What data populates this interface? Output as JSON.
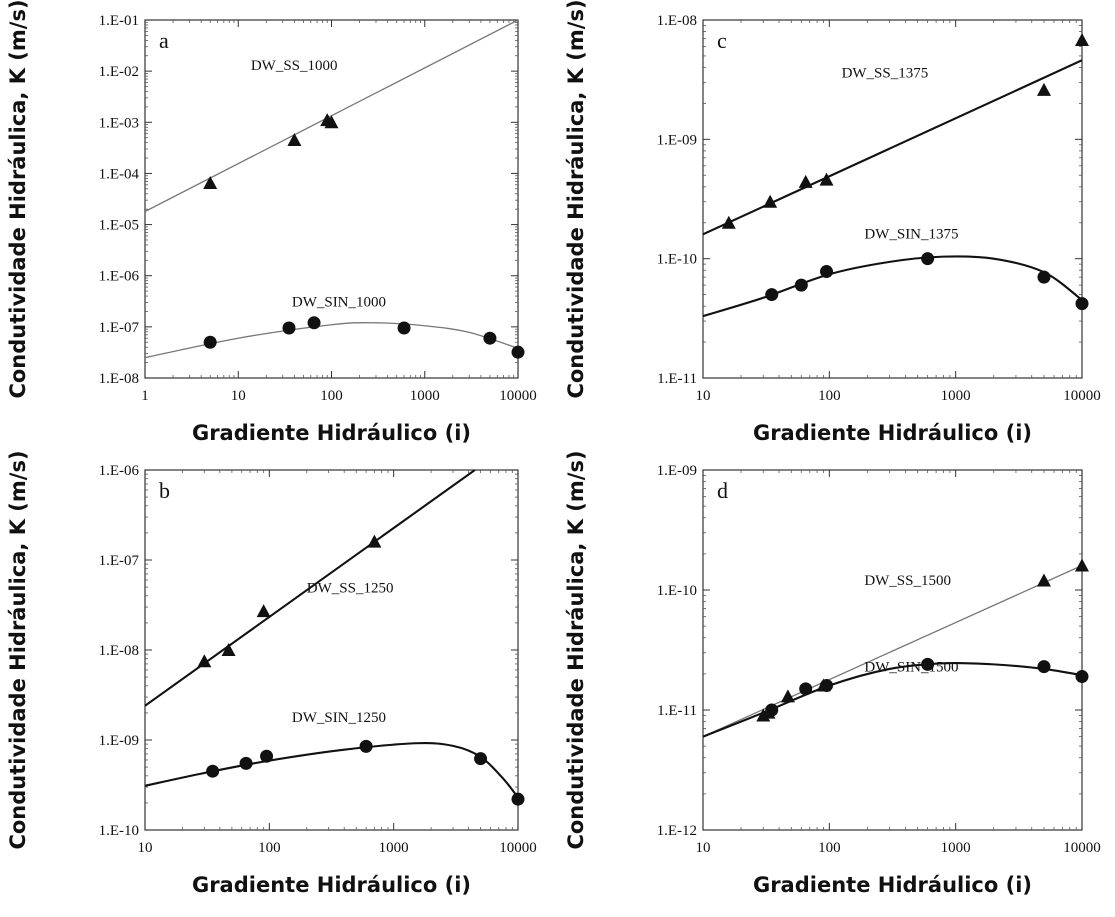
{
  "figure": {
    "xlabel": "Gradiente Hidráulico (i)",
    "ylabel": "Condutividade Hidráulica, K (m/s)"
  },
  "chart_data": [
    {
      "type": "scatter",
      "panel": "a",
      "x_scale": "log",
      "y_scale": "log",
      "xlim": [
        1,
        10000
      ],
      "ylim": [
        1e-08,
        0.1
      ],
      "x_ticks": [
        "1",
        "10",
        "100",
        "1000",
        "10000"
      ],
      "y_ticks": [
        "1.E-08",
        "1.E-07",
        "1.E-06",
        "1.E-05",
        "1.E-04",
        "1.E-03",
        "1.E-02",
        "1.E-01"
      ],
      "xlabel": "Gradiente Hidráulico (i)",
      "ylabel": "Condutividade Hidráulica, K (m/s)",
      "series": [
        {
          "name": "DW_SS_1000",
          "marker": "triangle",
          "line": "thin",
          "points": [
            [
              5,
              6.5e-05
            ],
            [
              40,
              0.00045
            ],
            [
              90,
              0.0011
            ],
            [
              100,
              0.001
            ]
          ],
          "fit": [
            [
              1,
              1.8e-05
            ],
            [
              10000,
              0.1
            ]
          ]
        },
        {
          "name": "DW_SIN_1000",
          "marker": "circle",
          "line": "thin",
          "points": [
            [
              5,
              5e-08
            ],
            [
              35,
              9.5e-08
            ],
            [
              65,
              1.2e-07
            ],
            [
              600,
              9.5e-08
            ],
            [
              5000,
              6e-08
            ],
            [
              10000,
              3.2e-08
            ]
          ],
          "fit": [
            [
              1,
              2.5e-08
            ],
            [
              10,
              6e-08
            ],
            [
              100,
              1.1e-07
            ],
            [
              300,
              1.2e-07
            ],
            [
              1000,
              1.05e-07
            ],
            [
              3000,
              7.8e-08
            ],
            [
              10000,
              3.8e-08
            ]
          ]
        }
      ]
    },
    {
      "type": "scatter",
      "panel": "b",
      "x_scale": "log",
      "y_scale": "log",
      "xlim": [
        10,
        10000
      ],
      "ylim": [
        1e-10,
        1e-06
      ],
      "x_ticks": [
        "10",
        "100",
        "1000",
        "10000"
      ],
      "y_ticks": [
        "1.E-10",
        "1.E-09",
        "1.E-08",
        "1.E-07",
        "1.E-06"
      ],
      "xlabel": "Gradiente Hidráulico (i)",
      "ylabel": "Condutividade Hidráulica, K (m/s)",
      "series": [
        {
          "name": "DW_SS_1250",
          "marker": "triangle",
          "line": "thick",
          "points": [
            [
              30,
              7.5e-09
            ],
            [
              47,
              1e-08
            ],
            [
              90,
              2.7e-08
            ],
            [
              700,
              1.6e-07
            ]
          ],
          "fit": [
            [
              10,
              2.4e-09
            ],
            [
              4500,
              1e-06
            ]
          ]
        },
        {
          "name": "DW_SIN_1250",
          "marker": "circle",
          "line": "thick",
          "points": [
            [
              35,
              4.5e-10
            ],
            [
              65,
              5.5e-10
            ],
            [
              95,
              6.6e-10
            ],
            [
              600,
              8.5e-10
            ],
            [
              5000,
              6.2e-10
            ],
            [
              10000,
              2.2e-10
            ]
          ],
          "fit": [
            [
              10,
              3.1e-10
            ],
            [
              30,
              4.3e-10
            ],
            [
              100,
              5.9e-10
            ],
            [
              400,
              7.8e-10
            ],
            [
              1500,
              9.2e-10
            ],
            [
              3000,
              8.6e-10
            ],
            [
              5000,
              6.5e-10
            ],
            [
              7500,
              3.8e-10
            ],
            [
              10000,
              2.3e-10
            ]
          ]
        }
      ]
    },
    {
      "type": "scatter",
      "panel": "c",
      "x_scale": "log",
      "y_scale": "log",
      "xlim": [
        10,
        10000
      ],
      "ylim": [
        1e-11,
        1e-08
      ],
      "x_ticks": [
        "10",
        "100",
        "1000",
        "10000"
      ],
      "y_ticks": [
        "1.E-11",
        "1.E-10",
        "1.E-09",
        "1.E-08"
      ],
      "xlabel": "Gradiente Hidráulico (i)",
      "ylabel": "Condutividade Hidráulica, K (m/s)",
      "series": [
        {
          "name": "DW_SS_1375",
          "marker": "triangle",
          "line": "thick",
          "points": [
            [
              16,
              2e-10
            ],
            [
              34,
              3e-10
            ],
            [
              65,
              4.4e-10
            ],
            [
              95,
              4.6e-10
            ],
            [
              5000,
              2.6e-09
            ],
            [
              10000,
              6.8e-09
            ]
          ],
          "fit": [
            [
              10,
              1.6e-10
            ],
            [
              10000,
              4.6e-09
            ]
          ]
        },
        {
          "name": "DW_SIN_1375",
          "marker": "circle",
          "line": "thick",
          "points": [
            [
              35,
              5e-11
            ],
            [
              60,
              6e-11
            ],
            [
              95,
              7.8e-11
            ],
            [
              600,
              1e-10
            ],
            [
              5000,
              7e-11
            ],
            [
              10000,
              4.2e-11
            ]
          ],
          "fit": [
            [
              10,
              3.3e-11
            ],
            [
              30,
              4.7e-11
            ],
            [
              100,
              7.4e-11
            ],
            [
              300,
              9.4e-11
            ],
            [
              800,
              1.04e-10
            ],
            [
              2000,
              1e-10
            ],
            [
              5000,
              7.7e-11
            ],
            [
              10000,
              4.5e-11
            ]
          ]
        }
      ]
    },
    {
      "type": "scatter",
      "panel": "d",
      "x_scale": "log",
      "y_scale": "log",
      "xlim": [
        10,
        10000
      ],
      "ylim": [
        1e-12,
        1e-09
      ],
      "x_ticks": [
        "10",
        "100",
        "1000",
        "10000"
      ],
      "y_ticks": [
        "1.E-12",
        "1.E-11",
        "1.E-10",
        "1.E-09"
      ],
      "xlabel": "Gradiente Hidráulico (i)",
      "ylabel": "Condutividade Hidráulica, K (m/s)",
      "series": [
        {
          "name": "DW_SS_1500",
          "marker": "triangle",
          "line": "thin",
          "points": [
            [
              30,
              9e-12
            ],
            [
              33,
              9.5e-12
            ],
            [
              47,
              1.3e-11
            ],
            [
              90,
              1.6e-11
            ],
            [
              5000,
              1.2e-10
            ],
            [
              10000,
              1.6e-10
            ]
          ],
          "fit": [
            [
              10,
              6e-12
            ],
            [
              10000,
              1.6e-10
            ]
          ]
        },
        {
          "name": "DW_SIN_1500",
          "marker": "circle",
          "line": "thick",
          "points": [
            [
              35,
              1e-11
            ],
            [
              65,
              1.5e-11
            ],
            [
              95,
              1.6e-11
            ],
            [
              600,
              2.4e-11
            ],
            [
              5000,
              2.3e-11
            ],
            [
              10000,
              1.9e-11
            ]
          ],
          "fit": [
            [
              10,
              6e-12
            ],
            [
              30,
              9.5e-12
            ],
            [
              100,
              1.6e-11
            ],
            [
              300,
              2.2e-11
            ],
            [
              800,
              2.45e-11
            ],
            [
              2000,
              2.4e-11
            ],
            [
              5000,
              2.2e-11
            ],
            [
              10000,
              1.95e-11
            ]
          ]
        }
      ]
    }
  ]
}
